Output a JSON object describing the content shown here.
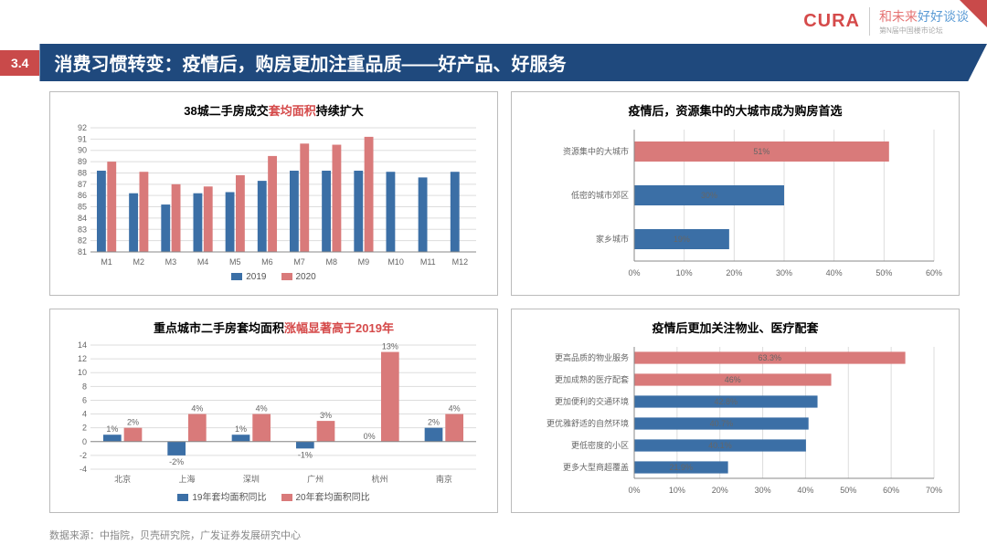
{
  "section_num": "3.4",
  "title": "消费习惯转变：疫情后，购房更加注重品质——好产品、好服务",
  "logo1": "CURA",
  "logo2_a": "和未来",
  "logo2_b": "好好谈谈",
  "logo2_sub": "第N届中国楼市论坛",
  "footer": "数据来源：中指院，贝壳研究院，广发证券发展研究中心",
  "colors": {
    "blue": "#3b6fa6",
    "red": "#d97a7a",
    "axis": "#666666",
    "grid": "#e0e0e0"
  },
  "chart_tl": {
    "title_pre": "38城二手房成交",
    "title_red": "套均面积",
    "title_post": "持续扩大",
    "categories": [
      "M1",
      "M2",
      "M3",
      "M4",
      "M5",
      "M6",
      "M7",
      "M8",
      "M9",
      "M10",
      "M11",
      "M12"
    ],
    "series": [
      {
        "name": "2019",
        "color": "#3b6fa6",
        "values": [
          88.2,
          86.2,
          85.2,
          86.2,
          86.3,
          87.3,
          88.2,
          88.2,
          88.2,
          88.1,
          87.6,
          88.1
        ]
      },
      {
        "name": "2020",
        "color": "#d97a7a",
        "values": [
          89.0,
          88.1,
          87.0,
          86.8,
          87.8,
          89.5,
          90.6,
          90.5,
          91.2,
          null,
          null,
          null
        ]
      }
    ],
    "ymin": 81,
    "ymax": 92,
    "ystep": 1
  },
  "chart_bl": {
    "title_pre": "重点城市二手房套均面积",
    "title_red": "涨幅显著高于2019年",
    "categories": [
      "北京",
      "上海",
      "深圳",
      "广州",
      "杭州",
      "南京"
    ],
    "series": [
      {
        "name": "19年套均面积同比",
        "color": "#3b6fa6",
        "values": [
          1,
          -2,
          1,
          -1,
          0,
          2
        ]
      },
      {
        "name": "20年套均面积同比",
        "color": "#d97a7a",
        "values": [
          2,
          4,
          4,
          3,
          13,
          4
        ]
      }
    ],
    "ymin": -4,
    "ymax": 14,
    "ystep": 2
  },
  "chart_tr": {
    "title": "疫情后，资源集中的大城市成为购房首选",
    "items": [
      {
        "label": "资源集中的大城市",
        "value": 51,
        "color": "#d97a7a"
      },
      {
        "label": "低密的城市郊区",
        "value": 30,
        "color": "#3b6fa6"
      },
      {
        "label": "家乡城市",
        "value": 19,
        "color": "#3b6fa6"
      }
    ],
    "xmax": 60,
    "xstep": 10
  },
  "chart_br": {
    "title": "疫情后更加关注物业、医疗配套",
    "items": [
      {
        "label": "更高品质的物业服务",
        "value": 63.3,
        "color": "#d97a7a"
      },
      {
        "label": "更加成熟的医疗配套",
        "value": 46.0,
        "color": "#d97a7a"
      },
      {
        "label": "更加便利的交通环境",
        "value": 42.8,
        "color": "#3b6fa6"
      },
      {
        "label": "更优雅舒适的自然环境",
        "value": 40.7,
        "color": "#3b6fa6"
      },
      {
        "label": "更低密度的小区",
        "value": 40.1,
        "color": "#3b6fa6"
      },
      {
        "label": "更多大型商超覆盖",
        "value": 21.9,
        "color": "#3b6fa6"
      }
    ],
    "xmax": 70,
    "xstep": 10
  }
}
